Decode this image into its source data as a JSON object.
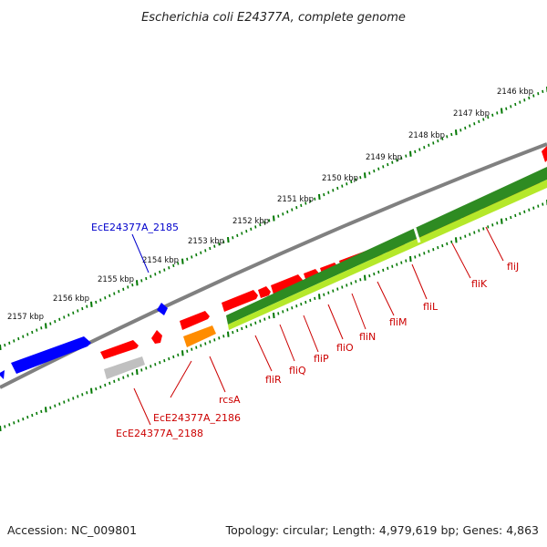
{
  "title": "Escherichia coli E24377A, complete genome",
  "ruler": {
    "upper_kbp_labels": [
      "2146 kbp",
      "2147 kbp",
      "2148 kbp",
      "2149 kbp",
      "2150 kbp",
      "2151 kbp",
      "2152 kbp",
      "2153 kbp",
      "2154 kbp",
      "2155 kbp",
      "2156 kbp",
      "2157 kbp"
    ]
  },
  "genes": [
    {
      "label": "EcE24377A_2185",
      "color": "#0000cc"
    },
    {
      "label": "EcE24377A_2186",
      "color": "#cc0000"
    },
    {
      "label": "EcE24377A_2188",
      "color": "#cc0000"
    },
    {
      "label": "rcsA",
      "color": "#cc0000"
    },
    {
      "label": "fliR",
      "color": "#cc0000"
    },
    {
      "label": "fliQ",
      "color": "#cc0000"
    },
    {
      "label": "fliP",
      "color": "#cc0000"
    },
    {
      "label": "fliO",
      "color": "#cc0000"
    },
    {
      "label": "fliN",
      "color": "#cc0000"
    },
    {
      "label": "fliM",
      "color": "#cc0000"
    },
    {
      "label": "fliL",
      "color": "#cc0000"
    },
    {
      "label": "fliK",
      "color": "#cc0000"
    },
    {
      "label": "fliJ",
      "color": "#cc0000"
    }
  ],
  "colors": {
    "forward_cds": "#ff0000",
    "reverse_cds": "#0000ff",
    "backbone": "#888888",
    "ruler_ticks": "#007700",
    "annotation_dark_green": "#228b22",
    "annotation_light_green": "#adff2f",
    "annotation_orange": "#ff8c00",
    "annotation_gray": "#c0c0c0"
  },
  "footer": {
    "accession": "Accession: NC_009801",
    "topology": "Topology: circular; Length: 4,979,619 bp; Genes: 4,863"
  }
}
